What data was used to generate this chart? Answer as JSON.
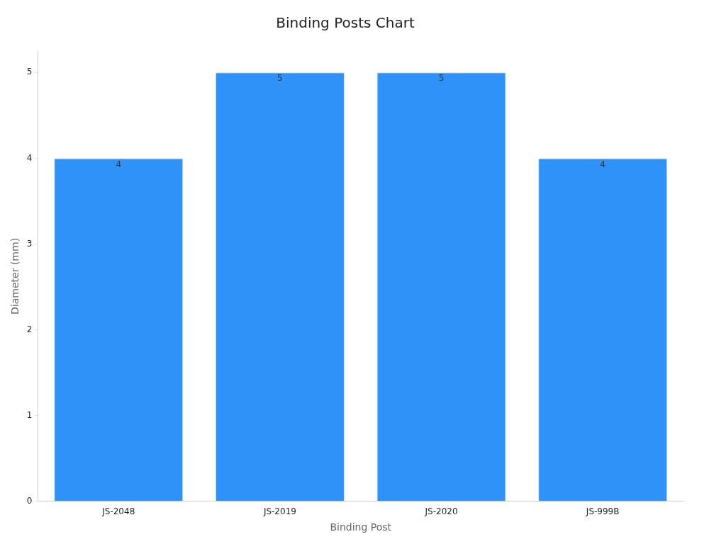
{
  "chart_data": {
    "type": "bar",
    "title": "Binding Posts Chart",
    "xlabel": "Binding Post",
    "ylabel": "Diameter (mm)",
    "categories": [
      "JS-2048",
      "JS-2019",
      "JS-2020",
      "JS-999B"
    ],
    "values": [
      4,
      5,
      5,
      4
    ],
    "color": "#2f92f8",
    "ylim": [
      0,
      5.25
    ],
    "yticks": [
      0,
      1,
      2,
      3,
      4,
      5
    ],
    "grid": false,
    "legend": false,
    "data_labels": true
  }
}
